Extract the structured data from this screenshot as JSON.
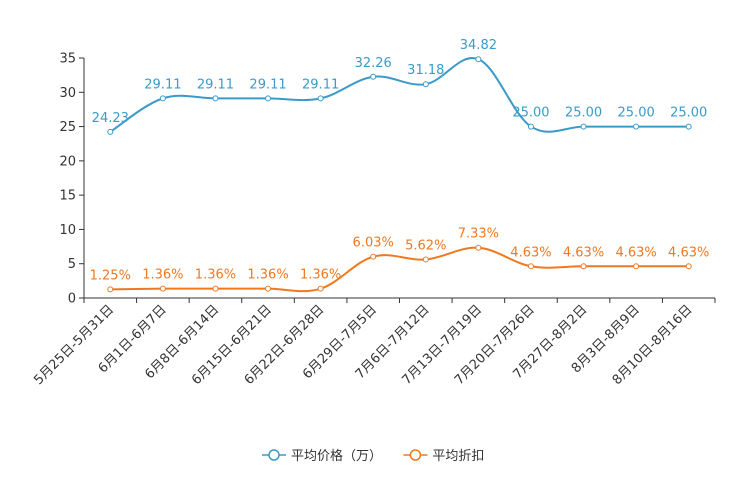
{
  "chart_data": {
    "type": "line",
    "title": "",
    "xlabel": "",
    "ylabel": "",
    "ylim": [
      0,
      35
    ],
    "yticks": [
      "0",
      "5",
      "10",
      "15",
      "20",
      "25",
      "30",
      "35"
    ],
    "grid": false,
    "legend_position": "bottom-center",
    "categories": [
      "5月25日-5月31日",
      "6月1日-6月7日",
      "6月8日-6月14日",
      "6月15日-6月21日",
      "6月22日-6月28日",
      "6月29日-7月5日",
      "7月6日-7月12日",
      "7月13日-7月19日",
      "7月20日-7月26日",
      "7月27日-8月2日",
      "8月3日-8月9日",
      "8月10日-8月16日"
    ],
    "series": [
      {
        "name": "平均价格（万）",
        "color": "#3a9bc8",
        "values": [
          24.23,
          29.11,
          29.11,
          29.11,
          29.11,
          32.26,
          31.18,
          34.82,
          25.0,
          25.0,
          25.0,
          25.0
        ],
        "labels": [
          "24.23",
          "29.11",
          "29.11",
          "29.11",
          "29.11",
          "32.26",
          "31.18",
          "34.82",
          "25.00",
          "25.00",
          "25.00",
          "25.00"
        ]
      },
      {
        "name": "平均折扣",
        "color": "#f07820",
        "values": [
          1.25,
          1.36,
          1.36,
          1.36,
          1.36,
          6.03,
          5.62,
          7.33,
          4.63,
          4.63,
          4.63,
          4.63
        ],
        "labels": [
          "1.25%",
          "1.36%",
          "1.36%",
          "1.36%",
          "1.36%",
          "6.03%",
          "5.62%",
          "7.33%",
          "4.63%",
          "4.63%",
          "4.63%",
          "4.63%"
        ]
      }
    ]
  }
}
